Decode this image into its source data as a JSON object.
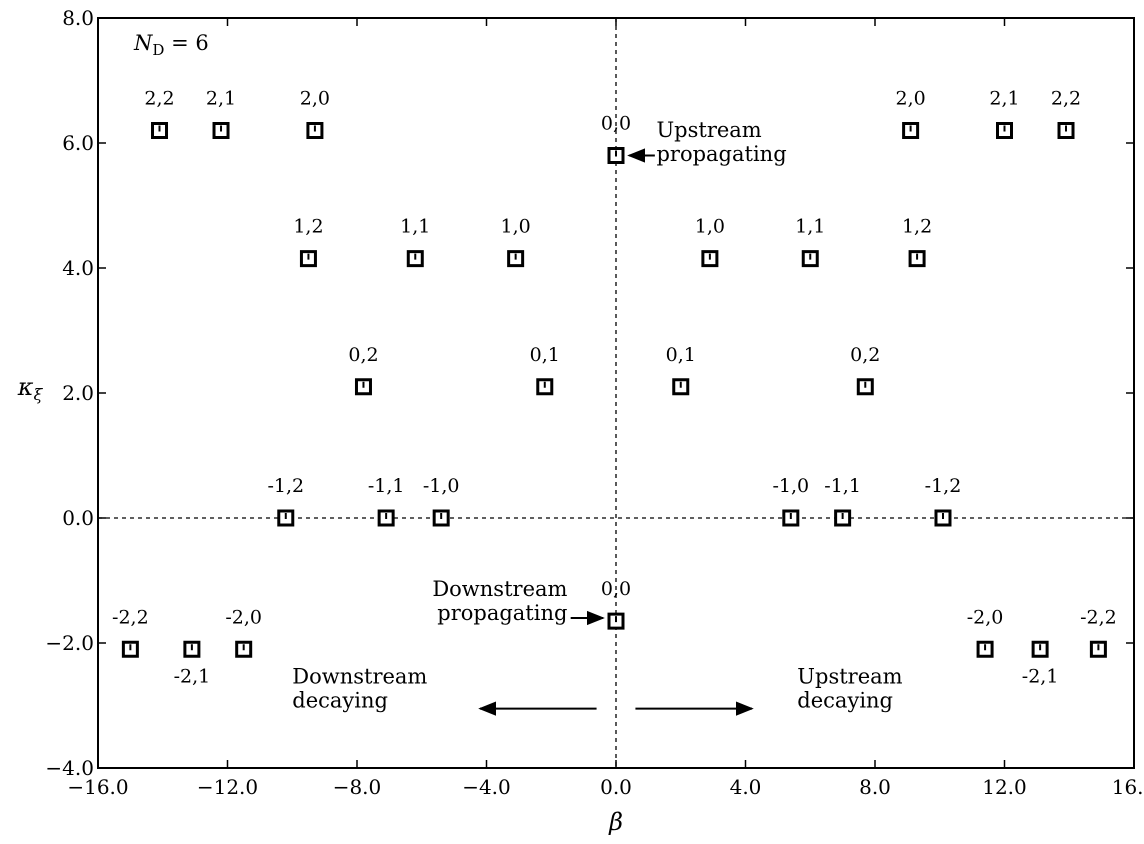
{
  "chart_data": {
    "type": "scatter",
    "title": "",
    "xlabel": "β",
    "ylabel": "κ",
    "ylabel_subscript": "ξ",
    "xlim": [
      -16.0,
      16.0
    ],
    "ylim": [
      -4.0,
      8.0
    ],
    "x_ticks": [
      -16.0,
      -12.0,
      -8.0,
      -4.0,
      0.0,
      4.0,
      8.0,
      12.0,
      16.0
    ],
    "x_tick_labels": [
      "−16.0",
      "−12.0",
      "−8.0",
      "−4.0",
      "0.0",
      "4.0",
      "8.0",
      "12.0",
      "16.0"
    ],
    "y_ticks": [
      -4.0,
      -2.0,
      0.0,
      2.0,
      4.0,
      6.0,
      8.0
    ],
    "y_tick_labels": [
      "−4.0",
      "−2.0",
      "0.0",
      "2.0",
      "4.0",
      "6.0",
      "8.0"
    ],
    "grid": false,
    "reference_lines": {
      "x": 0.0,
      "y": 0.0,
      "style": "dotted"
    },
    "marker": "open-square",
    "parameter_label": {
      "symbol": "N",
      "subscript": "D",
      "rest": " = 6"
    },
    "points": [
      {
        "x": -14.1,
        "y": 6.2,
        "label": "2,2"
      },
      {
        "x": -12.2,
        "y": 6.2,
        "label": "2,1"
      },
      {
        "x": -9.3,
        "y": 6.2,
        "label": "2,0"
      },
      {
        "x": 0.0,
        "y": 5.8,
        "label": "0,0"
      },
      {
        "x": 9.1,
        "y": 6.2,
        "label": "2,0"
      },
      {
        "x": 12.0,
        "y": 6.2,
        "label": "2,1"
      },
      {
        "x": 13.9,
        "y": 6.2,
        "label": "2,2"
      },
      {
        "x": -9.5,
        "y": 4.15,
        "label": "1,2"
      },
      {
        "x": -6.2,
        "y": 4.15,
        "label": "1,1"
      },
      {
        "x": -3.1,
        "y": 4.15,
        "label": "1,0"
      },
      {
        "x": 2.9,
        "y": 4.15,
        "label": "1,0"
      },
      {
        "x": 6.0,
        "y": 4.15,
        "label": "1,1"
      },
      {
        "x": 9.3,
        "y": 4.15,
        "label": "1,2"
      },
      {
        "x": -7.8,
        "y": 2.1,
        "label": "0,2"
      },
      {
        "x": -2.2,
        "y": 2.1,
        "label": "0,1"
      },
      {
        "x": 2.0,
        "y": 2.1,
        "label": "0,1"
      },
      {
        "x": 7.7,
        "y": 2.1,
        "label": "0,2"
      },
      {
        "x": -10.2,
        "y": 0.0,
        "label": "-1,2"
      },
      {
        "x": -7.1,
        "y": 0.0,
        "label": "-1,1"
      },
      {
        "x": -5.4,
        "y": 0.0,
        "label": "-1,0"
      },
      {
        "x": 5.4,
        "y": 0.0,
        "label": "-1,0"
      },
      {
        "x": 7.0,
        "y": 0.0,
        "label": "-1,1"
      },
      {
        "x": 10.1,
        "y": 0.0,
        "label": "-1,2"
      },
      {
        "x": 0.0,
        "y": -1.65,
        "label": "0,0"
      },
      {
        "x": -15.0,
        "y": -2.1,
        "label": "-2,2"
      },
      {
        "x": -13.1,
        "y": -2.1,
        "label": "-2,1",
        "label_position": "below"
      },
      {
        "x": -11.5,
        "y": -2.1,
        "label": "-2,0"
      },
      {
        "x": 11.4,
        "y": -2.1,
        "label": "-2,0"
      },
      {
        "x": 13.1,
        "y": -2.1,
        "label": "-2,1",
        "label_position": "below"
      },
      {
        "x": 14.9,
        "y": -2.1,
        "label": "-2,2"
      }
    ],
    "annotations": [
      {
        "lines": [
          "Upstream",
          "propagating"
        ],
        "x": 1.25,
        "y": 6.1,
        "align": "start",
        "arrow": {
          "from": [
            1.2,
            5.8
          ],
          "to": [
            0.4,
            5.8
          ]
        }
      },
      {
        "lines": [
          "Downstream",
          "propagating"
        ],
        "x": -1.5,
        "y": -1.25,
        "align": "end",
        "arrow": {
          "from": [
            -1.4,
            -1.6
          ],
          "to": [
            -0.4,
            -1.6
          ]
        }
      },
      {
        "lines": [
          "Downstream",
          "decaying"
        ],
        "x": -10.0,
        "y": -2.65,
        "align": "start",
        "arrow": {
          "from": [
            -0.6,
            -3.05
          ],
          "to": [
            -4.2,
            -3.05
          ]
        }
      },
      {
        "lines": [
          "Upstream",
          "decaying"
        ],
        "x": 5.6,
        "y": -2.65,
        "align": "start",
        "arrow": {
          "from": [
            0.6,
            -3.05
          ],
          "to": [
            4.2,
            -3.05
          ]
        }
      }
    ]
  }
}
